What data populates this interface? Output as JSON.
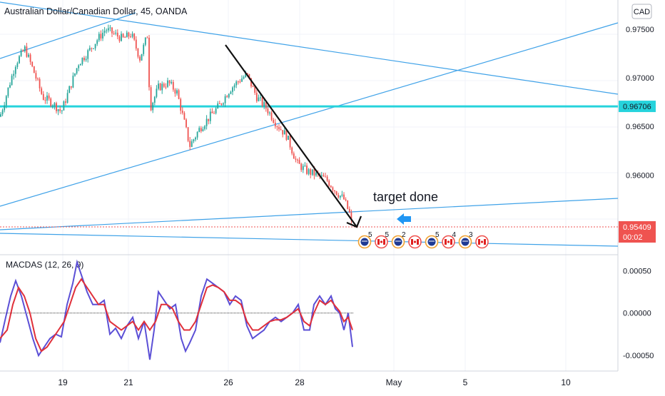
{
  "chart_data": {
    "type": "candlestick",
    "title": "Australian Dollar/Canadian Dollar, 45, OANDA",
    "currency_button": "CAD",
    "y_ticks": [
      "0.97500",
      "0.97000",
      "0.96500",
      "0.96000",
      "0.95500"
    ],
    "y_range": [
      0.9518,
      0.978
    ],
    "x_ticks": [
      "19",
      "21",
      "26",
      "28",
      "May",
      "5",
      "10"
    ],
    "price_label": "0.95409",
    "countdown": "00:02",
    "horizontal_level": {
      "value": 0.96706,
      "label": "0.96706",
      "color": "#26d3dc"
    },
    "annotation": "target done",
    "candle_colors": {
      "up": "#26a69a",
      "down": "#ef5350"
    },
    "close_path": [
      [
        0,
        0.966
      ],
      [
        12,
        0.969
      ],
      [
        22,
        0.9715
      ],
      [
        35,
        0.973
      ],
      [
        48,
        0.9705
      ],
      [
        60,
        0.968
      ],
      [
        72,
        0.9675
      ],
      [
        86,
        0.9665
      ],
      [
        98,
        0.969
      ],
      [
        110,
        0.9715
      ],
      [
        122,
        0.9725
      ],
      [
        135,
        0.9738
      ],
      [
        148,
        0.975
      ],
      [
        160,
        0.9745
      ],
      [
        172,
        0.974
      ],
      [
        184,
        0.9745
      ],
      [
        196,
        0.972
      ],
      [
        207,
        0.9745
      ],
      [
        210,
        0.9668
      ],
      [
        222,
        0.969
      ],
      [
        236,
        0.9695
      ],
      [
        248,
        0.9685
      ],
      [
        258,
        0.9655
      ],
      [
        266,
        0.963
      ],
      [
        280,
        0.9648
      ],
      [
        294,
        0.966
      ],
      [
        308,
        0.9672
      ],
      [
        322,
        0.9688
      ],
      [
        336,
        0.9698
      ],
      [
        346,
        0.9703
      ],
      [
        360,
        0.968
      ],
      [
        374,
        0.9668
      ],
      [
        388,
        0.9652
      ],
      [
        402,
        0.964
      ],
      [
        416,
        0.9612
      ],
      [
        430,
        0.9604
      ],
      [
        444,
        0.96
      ],
      [
        458,
        0.9595
      ],
      [
        472,
        0.9582
      ],
      [
        482,
        0.9575
      ],
      [
        490,
        0.956
      ],
      [
        495,
        0.9541
      ]
    ],
    "calendar_events": [
      {
        "text": "5",
        "kind": "au"
      },
      {
        "text": "5",
        "kind": "ca"
      },
      {
        "text": "2",
        "kind": "au"
      },
      {
        "text": "",
        "kind": "ca"
      },
      {
        "text": "5",
        "kind": "au"
      },
      {
        "text": "4",
        "kind": "ca"
      },
      {
        "text": "3",
        "kind": "au"
      },
      {
        "text": "",
        "kind": "ca"
      }
    ],
    "macd": {
      "label": "MACDAS (12, 26, 9)",
      "y_ticks": [
        "0.00050",
        "0.00000",
        "-0.00050"
      ],
      "y_range": [
        -0.00065,
        0.00062
      ],
      "zero_level": 0.0,
      "macd_color": "#5b4fd6",
      "signal_color": "#e0303a",
      "macd_path": [
        [
          0,
          -0.00035
        ],
        [
          8,
          -5e-05
        ],
        [
          15,
          0.0002
        ],
        [
          22,
          0.00038
        ],
        [
          30,
          0.0002
        ],
        [
          38,
          -5e-05
        ],
        [
          46,
          -0.0003
        ],
        [
          54,
          -0.0005
        ],
        [
          62,
          -0.0004
        ],
        [
          70,
          -0.0003
        ],
        [
          78,
          -0.00025
        ],
        [
          86,
          -0.00028
        ],
        [
          94,
          0.0001
        ],
        [
          102,
          0.00035
        ],
        [
          108,
          0.0006
        ],
        [
          114,
          0.00045
        ],
        [
          122,
          0.00025
        ],
        [
          130,
          0.0001
        ],
        [
          138,
          0.0001
        ],
        [
          146,
          0.00015
        ],
        [
          154,
          -0.00025
        ],
        [
          162,
          -0.00018
        ],
        [
          170,
          -0.0003
        ],
        [
          178,
          -0.00015
        ],
        [
          186,
          -5e-05
        ],
        [
          194,
          -0.0003
        ],
        [
          202,
          -0.0001
        ],
        [
          210,
          -0.00055
        ],
        [
          216,
          -0.0002
        ],
        [
          222,
          0.00025
        ],
        [
          230,
          0.00015
        ],
        [
          238,
          5e-05
        ],
        [
          246,
          0.0001
        ],
        [
          254,
          -0.0003
        ],
        [
          260,
          -0.00045
        ],
        [
          266,
          -0.00035
        ],
        [
          274,
          -0.0002
        ],
        [
          282,
          0.0002
        ],
        [
          290,
          0.0004
        ],
        [
          298,
          0.00035
        ],
        [
          306,
          0.0003
        ],
        [
          314,
          0.00025
        ],
        [
          322,
          0.0001
        ],
        [
          330,
          0.0002
        ],
        [
          338,
          0.00015
        ],
        [
          346,
          -0.00015
        ],
        [
          354,
          -0.0003
        ],
        [
          362,
          -0.00025
        ],
        [
          370,
          -0.0002
        ],
        [
          378,
          -0.0001
        ],
        [
          386,
          -5e-05
        ],
        [
          394,
          -0.0001
        ],
        [
          402,
          -5e-05
        ],
        [
          410,
          0.0
        ],
        [
          418,
          0.0001
        ],
        [
          426,
          -0.0002
        ],
        [
          434,
          -0.0002
        ],
        [
          440,
          0.0001
        ],
        [
          448,
          0.0002
        ],
        [
          456,
          0.0001
        ],
        [
          464,
          0.0002
        ],
        [
          470,
          5e-05
        ],
        [
          476,
          0.0
        ],
        [
          482,
          -0.0002
        ],
        [
          488,
          0.0
        ],
        [
          494,
          -0.0004
        ]
      ],
      "signal_path": [
        [
          0,
          -0.0003
        ],
        [
          10,
          -0.0002
        ],
        [
          18,
          0.0001
        ],
        [
          26,
          0.0003
        ],
        [
          34,
          0.0002
        ],
        [
          42,
          0.0
        ],
        [
          50,
          -0.0003
        ],
        [
          58,
          -0.00045
        ],
        [
          66,
          -0.0004
        ],
        [
          74,
          -0.0003
        ],
        [
          82,
          -0.0002
        ],
        [
          90,
          -0.0001
        ],
        [
          98,
          0.0001
        ],
        [
          106,
          0.0003
        ],
        [
          114,
          0.0004
        ],
        [
          122,
          0.0003
        ],
        [
          130,
          0.0002
        ],
        [
          138,
          0.0001
        ],
        [
          146,
          0.0001
        ],
        [
          154,
          -0.0001
        ],
        [
          162,
          -0.00015
        ],
        [
          170,
          -0.0002
        ],
        [
          178,
          -0.00015
        ],
        [
          186,
          -0.0001
        ],
        [
          194,
          -0.0002
        ],
        [
          202,
          -0.0001
        ],
        [
          210,
          -0.0002
        ],
        [
          218,
          -0.0001
        ],
        [
          226,
          0.0001
        ],
        [
          234,
          0.0001
        ],
        [
          242,
          5e-05
        ],
        [
          250,
          -0.0001
        ],
        [
          258,
          -0.0002
        ],
        [
          266,
          -0.0002
        ],
        [
          274,
          -0.0001
        ],
        [
          282,
          0.0001
        ],
        [
          290,
          0.0003
        ],
        [
          298,
          0.00033
        ],
        [
          306,
          0.0003
        ],
        [
          314,
          0.00025
        ],
        [
          322,
          0.00015
        ],
        [
          330,
          0.00015
        ],
        [
          338,
          0.0001
        ],
        [
          346,
          -0.0001
        ],
        [
          354,
          -0.0002
        ],
        [
          362,
          -0.0002
        ],
        [
          370,
          -0.00015
        ],
        [
          378,
          -0.0001
        ],
        [
          386,
          -8e-05
        ],
        [
          394,
          -8e-05
        ],
        [
          402,
          -5e-05
        ],
        [
          410,
          0.0
        ],
        [
          418,
          5e-05
        ],
        [
          426,
          -0.0001
        ],
        [
          434,
          -0.00015
        ],
        [
          440,
          0.0
        ],
        [
          448,
          0.00015
        ],
        [
          456,
          0.0001
        ],
        [
          464,
          0.00015
        ],
        [
          470,
          8e-05
        ],
        [
          476,
          2e-05
        ],
        [
          482,
          -0.0001
        ],
        [
          488,
          -5e-05
        ],
        [
          494,
          -0.0002
        ]
      ]
    }
  }
}
